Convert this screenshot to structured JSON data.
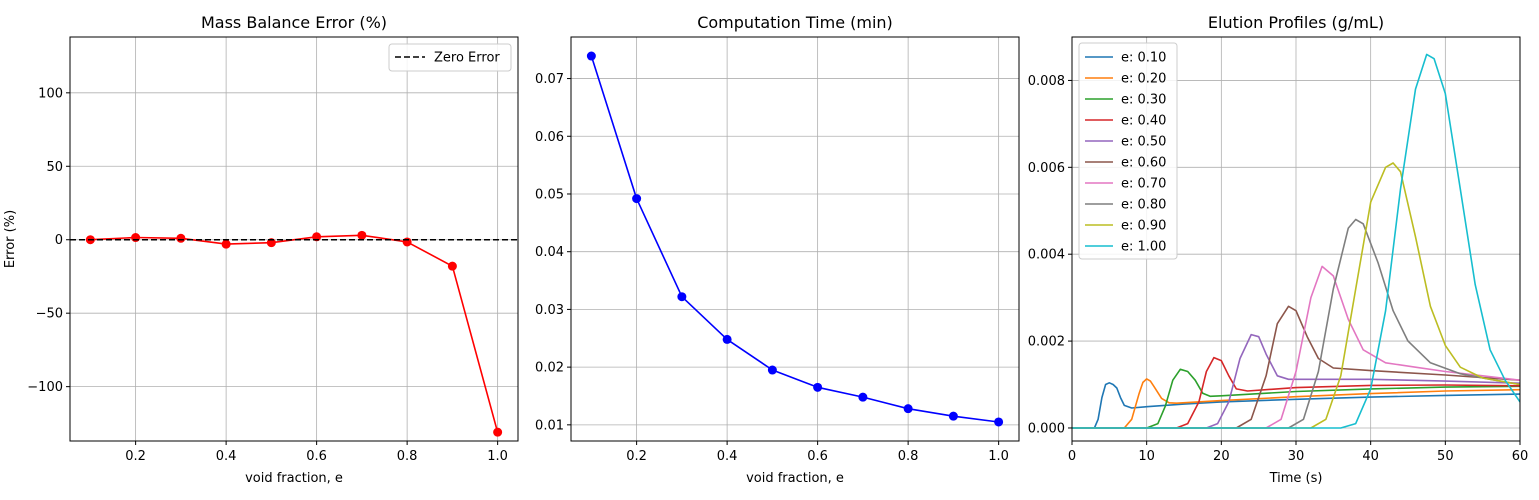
{
  "chart_data": [
    {
      "type": "line",
      "title": "Mass Balance Error (%)",
      "xlabel": "void fraction, e",
      "ylabel": "Error (%)",
      "xlim": [
        0.055,
        1.045
      ],
      "ylim": [
        -137,
        138
      ],
      "xticks": [
        0.2,
        0.4,
        0.6,
        0.8,
        1.0
      ],
      "xtick_labels": [
        "0.2",
        "0.4",
        "0.6",
        "0.8",
        "1.0"
      ],
      "yticks": [
        -100,
        -50,
        0,
        50,
        100
      ],
      "ytick_labels": [
        "−100",
        "−50",
        "0",
        "50",
        "100"
      ],
      "grid": true,
      "legend": {
        "location": "upper-right",
        "entries": [
          "Zero Error"
        ]
      },
      "series": [
        {
          "name": "",
          "color": "#ff0000",
          "marker": "circle",
          "x": [
            0.1,
            0.2,
            0.3,
            0.4,
            0.5,
            0.6,
            0.7,
            0.8,
            0.9,
            1.0
          ],
          "y": [
            0,
            1.5,
            1,
            -3,
            -2,
            2,
            3,
            -1.5,
            -18,
            -131
          ]
        },
        {
          "name": "Zero Error",
          "color": "#000000",
          "style": "dashed",
          "hline": 0
        }
      ]
    },
    {
      "type": "line",
      "title": "Computation Time (min)",
      "xlabel": "void fraction, e",
      "ylabel": "",
      "xlim": [
        0.055,
        1.045
      ],
      "ylim": [
        0.0072,
        0.0772
      ],
      "xticks": [
        0.2,
        0.4,
        0.6,
        0.8,
        1.0
      ],
      "xtick_labels": [
        "0.2",
        "0.4",
        "0.6",
        "0.8",
        "1.0"
      ],
      "yticks": [
        0.01,
        0.02,
        0.03,
        0.04,
        0.05,
        0.06,
        0.07
      ],
      "ytick_labels": [
        "0.01",
        "0.02",
        "0.03",
        "0.04",
        "0.05",
        "0.06",
        "0.07"
      ],
      "grid": true,
      "series": [
        {
          "name": "",
          "color": "#0000ff",
          "marker": "circle",
          "x": [
            0.1,
            0.2,
            0.3,
            0.4,
            0.5,
            0.6,
            0.7,
            0.8,
            0.9,
            1.0
          ],
          "y": [
            0.0739,
            0.0492,
            0.0322,
            0.0248,
            0.0195,
            0.0165,
            0.0148,
            0.0128,
            0.0115,
            0.0105
          ]
        }
      ]
    },
    {
      "type": "line",
      "title": "Elution Profiles (g/mL)",
      "xlabel": "Time (s)",
      "ylabel": "",
      "xlim": [
        0,
        60
      ],
      "ylim": [
        -0.0003,
        0.009
      ],
      "xticks": [
        0,
        10,
        20,
        30,
        40,
        50,
        60
      ],
      "xtick_labels": [
        "0",
        "10",
        "20",
        "30",
        "40",
        "50",
        "60"
      ],
      "yticks": [
        0,
        0.002,
        0.004,
        0.006,
        0.008
      ],
      "ytick_labels": [
        "0.000",
        "0.002",
        "0.004",
        "0.006",
        "0.008"
      ],
      "grid": true,
      "legend": {
        "location": "upper-left"
      },
      "series": [
        {
          "name": "e: 0.10",
          "color": "#1f77b4",
          "x": [
            0,
            3,
            3.5,
            4,
            4.5,
            5,
            5.5,
            6,
            6.5,
            7,
            8,
            10,
            15,
            20,
            30,
            40,
            50,
            60
          ],
          "y": [
            0,
            0,
            0.0002,
            0.0007,
            0.001,
            0.00104,
            0.001,
            0.00092,
            0.0007,
            0.00052,
            0.00046,
            0.00049,
            0.00055,
            0.0006,
            0.00066,
            0.00071,
            0.00075,
            0.00078
          ]
        },
        {
          "name": "e: 0.20",
          "color": "#ff7f0e",
          "x": [
            0,
            7,
            8,
            9,
            9.5,
            10,
            10.5,
            11,
            12,
            13,
            14,
            20,
            30,
            40,
            50,
            60
          ],
          "y": [
            0,
            0,
            0.0002,
            0.0008,
            0.00105,
            0.00113,
            0.00108,
            0.00095,
            0.00068,
            0.00058,
            0.00057,
            0.00063,
            0.00072,
            0.00079,
            0.00085,
            0.00088
          ]
        },
        {
          "name": "e: 0.30",
          "color": "#2ca02c",
          "x": [
            0,
            10,
            11.5,
            12.5,
            13.5,
            14.5,
            15.5,
            16.5,
            17.5,
            18.5,
            20,
            30,
            40,
            50,
            60
          ],
          "y": [
            0,
            0,
            0.0001,
            0.0005,
            0.0011,
            0.00135,
            0.0013,
            0.0011,
            0.0008,
            0.00073,
            0.00074,
            0.00084,
            0.0009,
            0.00094,
            0.00096
          ]
        },
        {
          "name": "e: 0.40",
          "color": "#d62728",
          "x": [
            0,
            14,
            15.5,
            17,
            18,
            19,
            20,
            21,
            22,
            23.5,
            30,
            40,
            50,
            60
          ],
          "y": [
            0,
            0,
            0.0001,
            0.0006,
            0.0013,
            0.00162,
            0.00155,
            0.0012,
            0.0009,
            0.00085,
            0.00093,
            0.00098,
            0.00099,
            0.00097
          ]
        },
        {
          "name": "e: 0.50",
          "color": "#9467bd",
          "x": [
            0,
            18,
            19.5,
            21,
            22.5,
            24,
            25,
            26,
            27.5,
            29,
            31,
            40,
            50,
            60
          ],
          "y": [
            0,
            0,
            0.0001,
            0.0006,
            0.0016,
            0.00215,
            0.0021,
            0.0017,
            0.0012,
            0.00112,
            0.00112,
            0.00112,
            0.00108,
            0.00103
          ]
        },
        {
          "name": "e: 0.60",
          "color": "#8c564b",
          "x": [
            0,
            22,
            24,
            26,
            27.5,
            29,
            30,
            31.5,
            33,
            35,
            40,
            50,
            60
          ],
          "y": [
            0,
            0,
            0.0002,
            0.0012,
            0.0024,
            0.0028,
            0.0027,
            0.0021,
            0.0016,
            0.00138,
            0.00132,
            0.00122,
            0.0011
          ]
        },
        {
          "name": "e: 0.70",
          "color": "#e377c2",
          "x": [
            0,
            26,
            28,
            30,
            32,
            33.5,
            35,
            37,
            39,
            42,
            46,
            50,
            55,
            60
          ],
          "y": [
            0,
            0,
            0.0002,
            0.0013,
            0.003,
            0.00372,
            0.0035,
            0.0025,
            0.0018,
            0.0015,
            0.0014,
            0.0013,
            0.0012,
            0.0011
          ]
        },
        {
          "name": "e: 0.80",
          "color": "#7f7f7f",
          "x": [
            0,
            29,
            31,
            33,
            35,
            37,
            38,
            39,
            41,
            43,
            45,
            48,
            52,
            56,
            60
          ],
          "y": [
            0,
            0,
            0.0002,
            0.0013,
            0.0032,
            0.0046,
            0.0048,
            0.0047,
            0.0038,
            0.0027,
            0.002,
            0.0015,
            0.00125,
            0.00112,
            0.001
          ]
        },
        {
          "name": "e: 0.90",
          "color": "#bcbd22",
          "x": [
            0,
            32,
            34,
            36,
            38,
            40,
            42,
            43,
            44,
            46,
            48,
            50,
            52,
            55,
            60
          ],
          "y": [
            0,
            0,
            0.0002,
            0.0012,
            0.0032,
            0.0052,
            0.006,
            0.0061,
            0.0059,
            0.0044,
            0.0028,
            0.0019,
            0.0014,
            0.00115,
            0.001
          ]
        },
        {
          "name": "e: 1.00",
          "color": "#17becf",
          "x": [
            0,
            36,
            38,
            40,
            42,
            44,
            46,
            47.5,
            48.5,
            50,
            52,
            54,
            56,
            58,
            60
          ],
          "y": [
            0,
            0,
            0.0001,
            0.0009,
            0.0027,
            0.0055,
            0.0078,
            0.0086,
            0.0085,
            0.0077,
            0.0055,
            0.0033,
            0.0018,
            0.0011,
            0.0006
          ]
        }
      ]
    }
  ]
}
